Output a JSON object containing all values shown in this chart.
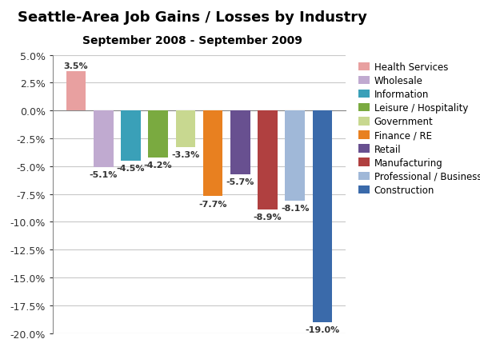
{
  "title": "Seattle-Area Job Gains / Losses by Industry",
  "subtitle": "September 2008 - September 2009",
  "categories": [
    "Health Services",
    "Wholesale",
    "Information",
    "Leisure / Hospitality",
    "Government",
    "Finance / RE",
    "Retail",
    "Manufacturing",
    "Professional / Business",
    "Construction"
  ],
  "values": [
    3.5,
    -5.1,
    -4.5,
    -4.2,
    -3.3,
    -7.7,
    -5.7,
    -8.9,
    -8.1,
    -19.0
  ],
  "colors": [
    "#e8a0a0",
    "#c0aad0",
    "#3aa0b8",
    "#7aaa40",
    "#c8d890",
    "#e88020",
    "#685090",
    "#b04040",
    "#a0b8d8",
    "#3a6aaa"
  ],
  "legend_labels": [
    "Health Services",
    "Wholesale",
    "Information",
    "Leisure / Hospitality",
    "Government",
    "Finance / RE",
    "Retail",
    "Manufacturing",
    "Professional / Business",
    "Construction"
  ],
  "ylim": [
    -20.0,
    5.0
  ],
  "yticks": [
    5.0,
    2.5,
    0.0,
    -2.5,
    -5.0,
    -7.5,
    -10.0,
    -12.5,
    -15.0,
    -17.5,
    -20.0
  ],
  "background_color": "#ffffff",
  "grid_color": "#c8c8c8",
  "title_fontsize": 13,
  "subtitle_fontsize": 10,
  "label_fontsize": 8
}
